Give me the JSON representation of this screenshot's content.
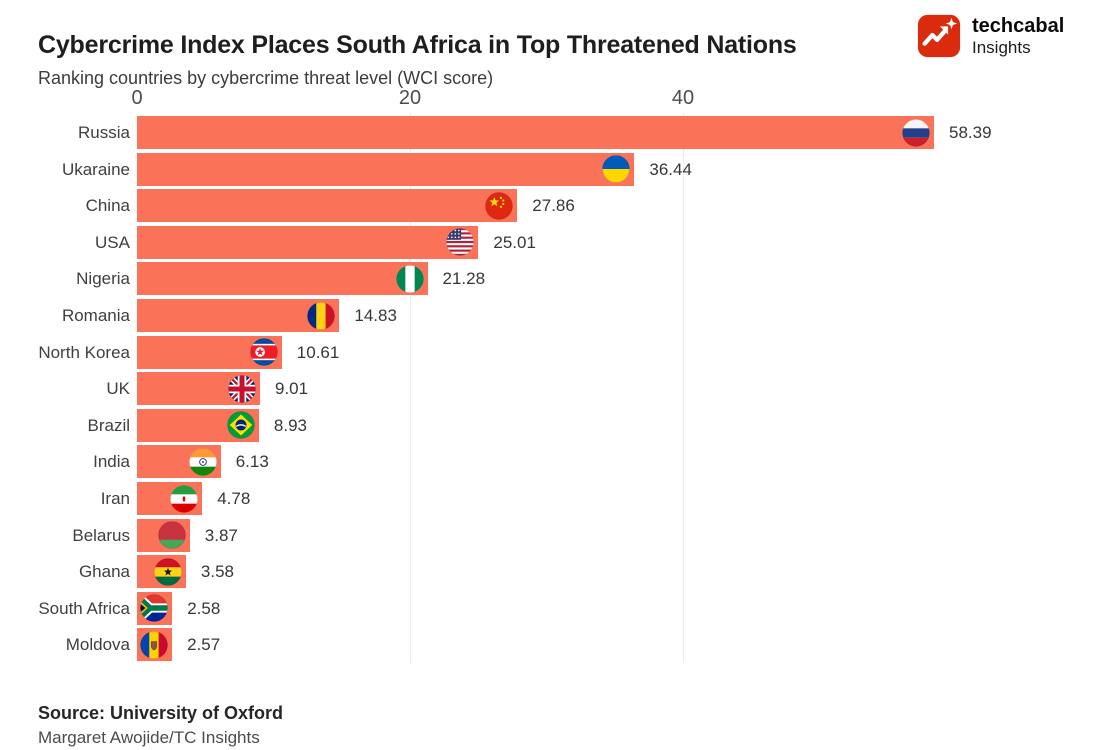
{
  "header": {
    "brand": {
      "name": "techcabal",
      "sub": "Insights",
      "logo_icon": "techcabal-logo-icon",
      "logo_color": "#DB2B0E"
    }
  },
  "chart_data": {
    "type": "bar",
    "orientation": "horizontal",
    "title": "Cybercrime Index Places South Africa in Top Threatened Nations",
    "subtitle": "Ranking countries by cybercrime threat level (WCI score)",
    "xlabel": "",
    "ylabel": "",
    "value_units": "WCI score",
    "axis_ticks": [
      0,
      20,
      40
    ],
    "xlim": [
      0,
      60
    ],
    "grid": "vertical",
    "bar_color": "#FA7359",
    "grid_color": "#ececec",
    "categories": [
      "Russia",
      "Ukaraine",
      "China",
      "USA",
      "Nigeria",
      "Romania",
      "North Korea",
      "UK",
      "Brazil",
      "India",
      "Iran",
      "Belarus",
      "Ghana",
      "South Africa",
      "Moldova"
    ],
    "values": [
      58.39,
      36.44,
      27.86,
      25.01,
      21.28,
      14.83,
      10.61,
      9.01,
      8.93,
      6.13,
      4.78,
      3.87,
      3.58,
      2.58,
      2.57
    ],
    "flags": [
      "russia-flag-icon",
      "ukraine-flag-icon",
      "china-flag-icon",
      "usa-flag-icon",
      "nigeria-flag-icon",
      "romania-flag-icon",
      "north-korea-flag-icon",
      "uk-flag-icon",
      "brazil-flag-icon",
      "india-flag-icon",
      "iran-flag-icon",
      "belarus-flag-icon",
      "ghana-flag-icon",
      "south-africa-flag-icon",
      "moldova-flag-icon"
    ]
  },
  "footer": {
    "source": "Source: University of Oxford",
    "byline": "Margaret Awojide/TC Insights"
  }
}
